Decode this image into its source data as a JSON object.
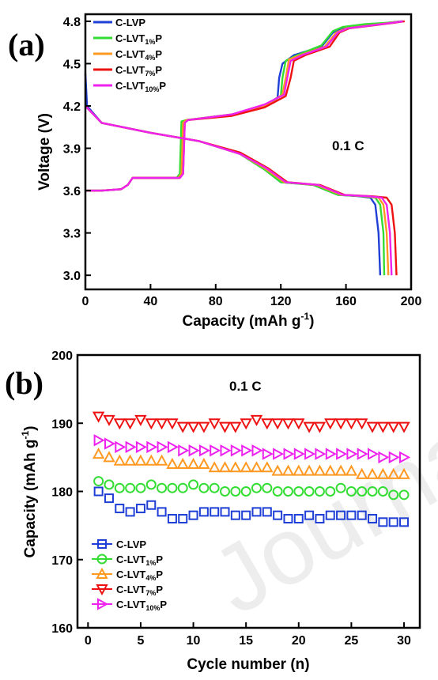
{
  "panel_a": {
    "label": "(a)",
    "rate": "0.1 C",
    "legend": [
      {
        "main": "C-LVP",
        "sub": "",
        "tail": ""
      },
      {
        "main": "C-LVT",
        "sub": "1%",
        "tail": "P"
      },
      {
        "main": "C-LVT",
        "sub": "4%",
        "tail": "P"
      },
      {
        "main": "C-LVT",
        "sub": "7%",
        "tail": "P"
      },
      {
        "main": "C-LVT",
        "sub": "10%",
        "tail": "P"
      }
    ]
  },
  "panel_b": {
    "label": "(b)",
    "rate": "0.1 C",
    "legend": [
      {
        "main": "C-LVP",
        "sub": "",
        "tail": ""
      },
      {
        "main": "C-LVT",
        "sub": "1%",
        "tail": "P"
      },
      {
        "main": "C-LVT",
        "sub": "4%",
        "tail": "P"
      },
      {
        "main": "C-LVT",
        "sub": "7%",
        "tail": "P"
      },
      {
        "main": "C-LVT",
        "sub": "10%",
        "tail": "P"
      }
    ]
  },
  "watermark": "Journal Pre",
  "chart_data": [
    {
      "type": "line",
      "xlabel": "Capacity (mAh g-1)",
      "xlabel_main": "Capacity (mAh g",
      "xlabel_sup": "-1",
      "xlabel_tail": ")",
      "ylabel": "Voltage (V)",
      "xlim": [
        0,
        200
      ],
      "ylim": [
        2.9,
        4.85
      ],
      "xticks": [
        0,
        40,
        80,
        120,
        160,
        200
      ],
      "yticks": [
        3.0,
        3.3,
        3.6,
        3.9,
        4.2,
        4.5,
        4.8
      ],
      "ytick_labels": [
        "3.0",
        "3.3",
        "3.6",
        "3.9",
        "4.2",
        "4.5",
        "4.8"
      ],
      "legend_position": "top-left",
      "colors": [
        "#1f3fd6",
        "#33dd33",
        "#ff9922",
        "#ee1111",
        "#ee22ee"
      ],
      "series": [
        {
          "charge": [
            [
              0,
              3.6
            ],
            [
              10,
              3.6
            ],
            [
              22,
              3.61
            ],
            [
              26,
              3.64
            ],
            [
              29,
              3.69
            ],
            [
              45,
              3.69
            ],
            [
              57,
              3.69
            ],
            [
              59,
              3.72
            ],
            [
              60,
              4.08
            ],
            [
              62,
              4.1
            ],
            [
              90,
              4.14
            ],
            [
              110,
              4.2
            ],
            [
              118,
              4.26
            ],
            [
              119,
              4.4
            ],
            [
              121,
              4.5
            ],
            [
              128,
              4.56
            ],
            [
              145,
              4.62
            ],
            [
              152,
              4.72
            ],
            [
              158,
              4.75
            ],
            [
              172,
              4.77
            ],
            [
              186,
              4.79
            ],
            [
              194,
              4.8
            ]
          ],
          "discharge": [
            [
              0,
              4.43
            ],
            [
              1,
              4.2
            ],
            [
              10,
              4.08
            ],
            [
              40,
              4.01
            ],
            [
              70,
              3.95
            ],
            [
              95,
              3.86
            ],
            [
              110,
              3.75
            ],
            [
              120,
              3.66
            ],
            [
              140,
              3.64
            ],
            [
              155,
              3.57
            ],
            [
              168,
              3.56
            ],
            [
              175,
              3.55
            ],
            [
              178,
              3.5
            ],
            [
              180,
              3.3
            ],
            [
              181,
              3.0
            ]
          ]
        },
        {
          "charge": [
            [
              0,
              3.6
            ],
            [
              10,
              3.6
            ],
            [
              22,
              3.61
            ],
            [
              26,
              3.64
            ],
            [
              29,
              3.69
            ],
            [
              45,
              3.69
            ],
            [
              56,
              3.69
            ],
            [
              58,
              3.72
            ],
            [
              59,
              4.09
            ],
            [
              62,
              4.1
            ],
            [
              90,
              4.14
            ],
            [
              110,
              4.2
            ],
            [
              120,
              4.27
            ],
            [
              121,
              4.4
            ],
            [
              123,
              4.52
            ],
            [
              130,
              4.56
            ],
            [
              145,
              4.63
            ],
            [
              152,
              4.73
            ],
            [
              158,
              4.76
            ],
            [
              172,
              4.78
            ],
            [
              186,
              4.79
            ],
            [
              195,
              4.8
            ]
          ],
          "discharge": [
            [
              0,
              4.2
            ],
            [
              10,
              4.08
            ],
            [
              40,
              4.01
            ],
            [
              70,
              3.95
            ],
            [
              95,
              3.86
            ],
            [
              110,
              3.75
            ],
            [
              120,
              3.66
            ],
            [
              140,
              3.64
            ],
            [
              155,
              3.57
            ],
            [
              170,
              3.56
            ],
            [
              178,
              3.55
            ],
            [
              181,
              3.5
            ],
            [
              183,
              3.3
            ],
            [
              183.5,
              3.0
            ]
          ]
        },
        {
          "charge": [
            [
              0,
              3.6
            ],
            [
              10,
              3.6
            ],
            [
              22,
              3.61
            ],
            [
              26,
              3.64
            ],
            [
              29,
              3.69
            ],
            [
              45,
              3.69
            ],
            [
              57,
              3.69
            ],
            [
              59,
              3.72
            ],
            [
              60,
              4.08
            ],
            [
              62,
              4.1
            ],
            [
              90,
              4.14
            ],
            [
              110,
              4.2
            ],
            [
              121,
              4.28
            ],
            [
              123,
              4.4
            ],
            [
              125,
              4.53
            ],
            [
              132,
              4.56
            ],
            [
              147,
              4.62
            ],
            [
              154,
              4.72
            ],
            [
              160,
              4.75
            ],
            [
              174,
              4.77
            ],
            [
              188,
              4.79
            ],
            [
              195,
              4.8
            ]
          ],
          "discharge": [
            [
              0,
              4.2
            ],
            [
              10,
              4.08
            ],
            [
              40,
              4.01
            ],
            [
              70,
              3.95
            ],
            [
              95,
              3.86
            ],
            [
              110,
              3.76
            ],
            [
              122,
              3.66
            ],
            [
              142,
              3.64
            ],
            [
              157,
              3.57
            ],
            [
              172,
              3.56
            ],
            [
              180,
              3.55
            ],
            [
              183,
              3.5
            ],
            [
              185,
              3.3
            ],
            [
              186,
              3.0
            ]
          ]
        },
        {
          "charge": [
            [
              0,
              3.6
            ],
            [
              10,
              3.6
            ],
            [
              22,
              3.61
            ],
            [
              26,
              3.64
            ],
            [
              29,
              3.69
            ],
            [
              45,
              3.69
            ],
            [
              58,
              3.69
            ],
            [
              60,
              3.72
            ],
            [
              61,
              4.08
            ],
            [
              63,
              4.1
            ],
            [
              90,
              4.13
            ],
            [
              110,
              4.19
            ],
            [
              123,
              4.27
            ],
            [
              126,
              4.4
            ],
            [
              128,
              4.52
            ],
            [
              135,
              4.56
            ],
            [
              150,
              4.62
            ],
            [
              156,
              4.72
            ],
            [
              162,
              4.75
            ],
            [
              176,
              4.77
            ],
            [
              190,
              4.79
            ],
            [
              196,
              4.8
            ]
          ],
          "discharge": [
            [
              0,
              4.2
            ],
            [
              10,
              4.08
            ],
            [
              40,
              4.01
            ],
            [
              70,
              3.95
            ],
            [
              95,
              3.87
            ],
            [
              112,
              3.76
            ],
            [
              124,
              3.66
            ],
            [
              144,
              3.64
            ],
            [
              159,
              3.57
            ],
            [
              176,
              3.56
            ],
            [
              185,
              3.55
            ],
            [
              188,
              3.5
            ],
            [
              190,
              3.3
            ],
            [
              191,
              3.0
            ]
          ]
        },
        {
          "charge": [
            [
              0,
              3.6
            ],
            [
              10,
              3.6
            ],
            [
              22,
              3.61
            ],
            [
              26,
              3.64
            ],
            [
              29,
              3.69
            ],
            [
              45,
              3.69
            ],
            [
              58,
              3.69
            ],
            [
              60,
              3.72
            ],
            [
              61,
              4.08
            ],
            [
              63,
              4.1
            ],
            [
              90,
              4.14
            ],
            [
              110,
              4.21
            ],
            [
              122,
              4.28
            ],
            [
              124,
              4.4
            ],
            [
              126,
              4.52
            ],
            [
              133,
              4.56
            ],
            [
              148,
              4.62
            ],
            [
              155,
              4.72
            ],
            [
              161,
              4.75
            ],
            [
              175,
              4.77
            ],
            [
              189,
              4.79
            ],
            [
              195,
              4.8
            ]
          ],
          "discharge": [
            [
              0,
              4.2
            ],
            [
              10,
              4.08
            ],
            [
              40,
              4.01
            ],
            [
              70,
              3.95
            ],
            [
              95,
              3.86
            ],
            [
              111,
              3.76
            ],
            [
              123,
              3.66
            ],
            [
              143,
              3.64
            ],
            [
              158,
              3.57
            ],
            [
              174,
              3.56
            ],
            [
              182,
              3.55
            ],
            [
              185,
              3.5
            ],
            [
              187,
              3.3
            ],
            [
              188,
              3.0
            ]
          ]
        }
      ]
    },
    {
      "type": "scatter",
      "xlabel": "Cycle number (n)",
      "ylabel": "Capacity (mAh g-1)",
      "ylabel_main": "Capacity (mAh g",
      "ylabel_sup": "-1",
      "ylabel_tail": ")",
      "xlim": [
        -1,
        31.5
      ],
      "ylim": [
        160,
        200
      ],
      "xticks": [
        0,
        5,
        10,
        15,
        20,
        25,
        30
      ],
      "yticks": [
        160,
        170,
        180,
        190,
        200
      ],
      "legend_position": "bottom-left",
      "colors": [
        "#1f3fd6",
        "#33dd33",
        "#ff9922",
        "#ee1111",
        "#ee22ee"
      ],
      "markers": [
        "square",
        "circle",
        "triangle-up",
        "triangle-down",
        "triangle-right"
      ],
      "x": [
        1,
        2,
        3,
        4,
        5,
        6,
        7,
        8,
        9,
        10,
        11,
        12,
        13,
        14,
        15,
        16,
        17,
        18,
        19,
        20,
        21,
        22,
        23,
        24,
        25,
        26,
        27,
        28,
        29,
        30
      ],
      "series": [
        {
          "values": [
            180.0,
            179.0,
            177.5,
            177.0,
            177.5,
            178.0,
            177.0,
            176.0,
            176.0,
            176.5,
            177.0,
            177.0,
            177.0,
            176.5,
            176.5,
            177.0,
            177.0,
            176.5,
            176.0,
            176.0,
            176.5,
            176.0,
            176.5,
            176.5,
            176.5,
            176.5,
            176.0,
            175.5,
            175.5,
            175.5
          ]
        },
        {
          "values": [
            181.5,
            181.0,
            180.5,
            180.5,
            180.5,
            181.0,
            180.5,
            180.5,
            180.5,
            181.0,
            180.5,
            180.5,
            180.0,
            180.0,
            180.0,
            180.5,
            180.5,
            180.0,
            180.0,
            180.0,
            180.0,
            180.0,
            180.0,
            180.5,
            180.0,
            180.0,
            180.0,
            180.0,
            179.5,
            179.5
          ]
        },
        {
          "values": [
            185.5,
            185.0,
            184.5,
            184.5,
            184.5,
            184.5,
            184.5,
            184.0,
            184.0,
            184.0,
            184.0,
            183.5,
            183.5,
            183.5,
            183.5,
            183.5,
            183.5,
            183.0,
            183.0,
            183.0,
            183.0,
            183.0,
            183.0,
            183.0,
            183.0,
            182.5,
            182.5,
            182.5,
            182.5,
            182.5
          ]
        },
        {
          "values": [
            191.0,
            190.5,
            190.0,
            190.0,
            190.5,
            190.0,
            190.0,
            190.0,
            189.5,
            189.5,
            189.5,
            190.0,
            189.5,
            189.5,
            190.0,
            190.5,
            190.0,
            190.0,
            190.0,
            190.0,
            189.5,
            189.5,
            190.0,
            190.0,
            190.0,
            190.0,
            189.5,
            189.5,
            189.5,
            189.5
          ]
        },
        {
          "values": [
            187.5,
            187.0,
            186.5,
            186.5,
            186.5,
            186.5,
            186.5,
            186.5,
            186.0,
            186.0,
            186.0,
            186.0,
            186.0,
            186.0,
            186.0,
            186.0,
            185.5,
            185.5,
            185.5,
            185.5,
            185.5,
            185.5,
            185.5,
            185.5,
            185.5,
            185.5,
            185.5,
            185.0,
            185.0,
            185.0
          ]
        }
      ]
    }
  ]
}
